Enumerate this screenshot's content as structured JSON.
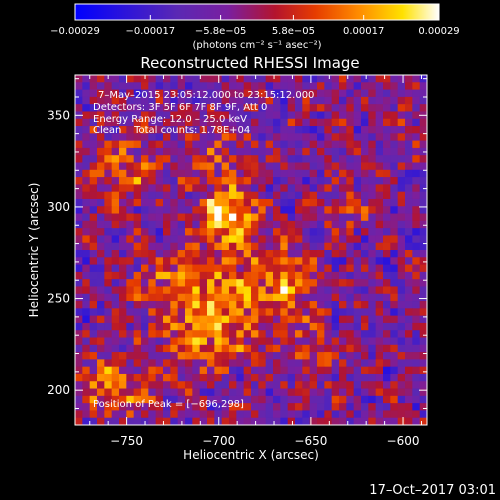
{
  "chart_data": {
    "type": "heatmap",
    "title": "Reconstructed RHESSI Image",
    "xlabel": "Heliocentric X (arcsec)",
    "ylabel": "Heliocentric Y (arcsec)",
    "xlim": [
      -778,
      -587
    ],
    "ylim": [
      181,
      372
    ],
    "x_ticks": [
      -750,
      -700,
      -650,
      -600
    ],
    "x_tick_labels": [
      "−750",
      "−700",
      "−650",
      "−600"
    ],
    "y_ticks": [
      200,
      250,
      300,
      350
    ],
    "y_tick_labels": [
      "200",
      "250",
      "300",
      "350"
    ],
    "colorbar": {
      "range": [
        -0.00029,
        0.00029
      ],
      "tick_values": [
        -0.00029,
        -0.00017,
        -5.8e-05,
        5.8e-05,
        0.00017,
        0.00029
      ],
      "tick_labels": [
        "−0.00029",
        "−0.00017",
        "−5.8e−05",
        "5.8e−05",
        "0.00017",
        "0.00029"
      ],
      "units_label": "(photons cm⁻² s⁻¹ asec⁻²)",
      "colormap": "blue-purple-red-orange-yellow-white"
    },
    "annotations": [
      "7–May–2015 23:05:12.000 to 23:15:12.000",
      "Detectors: 3F 5F 6F 7F 8F 9F, Att 0",
      "Energy Range: 12.0 – 25.0 keV",
      "Clean    Total counts: 1.78E+04"
    ],
    "peak_label": "Position of Peak = [−696,298]",
    "peak": {
      "x": -696,
      "y": 298
    },
    "grid": false,
    "pixel_size_arcsec": 4,
    "image_grid": {
      "cols": 48,
      "rows": 48
    }
  },
  "footer": {
    "timestamp": "17–Oct–2017 03:01"
  },
  "colors": {
    "background": "#000000",
    "text": "#ffffff",
    "cmap_stops": [
      "#0000ff",
      "#5a28b4",
      "#7a1fa0",
      "#b4142d",
      "#e63c00",
      "#ff8c00",
      "#ffe100",
      "#ffffff"
    ]
  }
}
